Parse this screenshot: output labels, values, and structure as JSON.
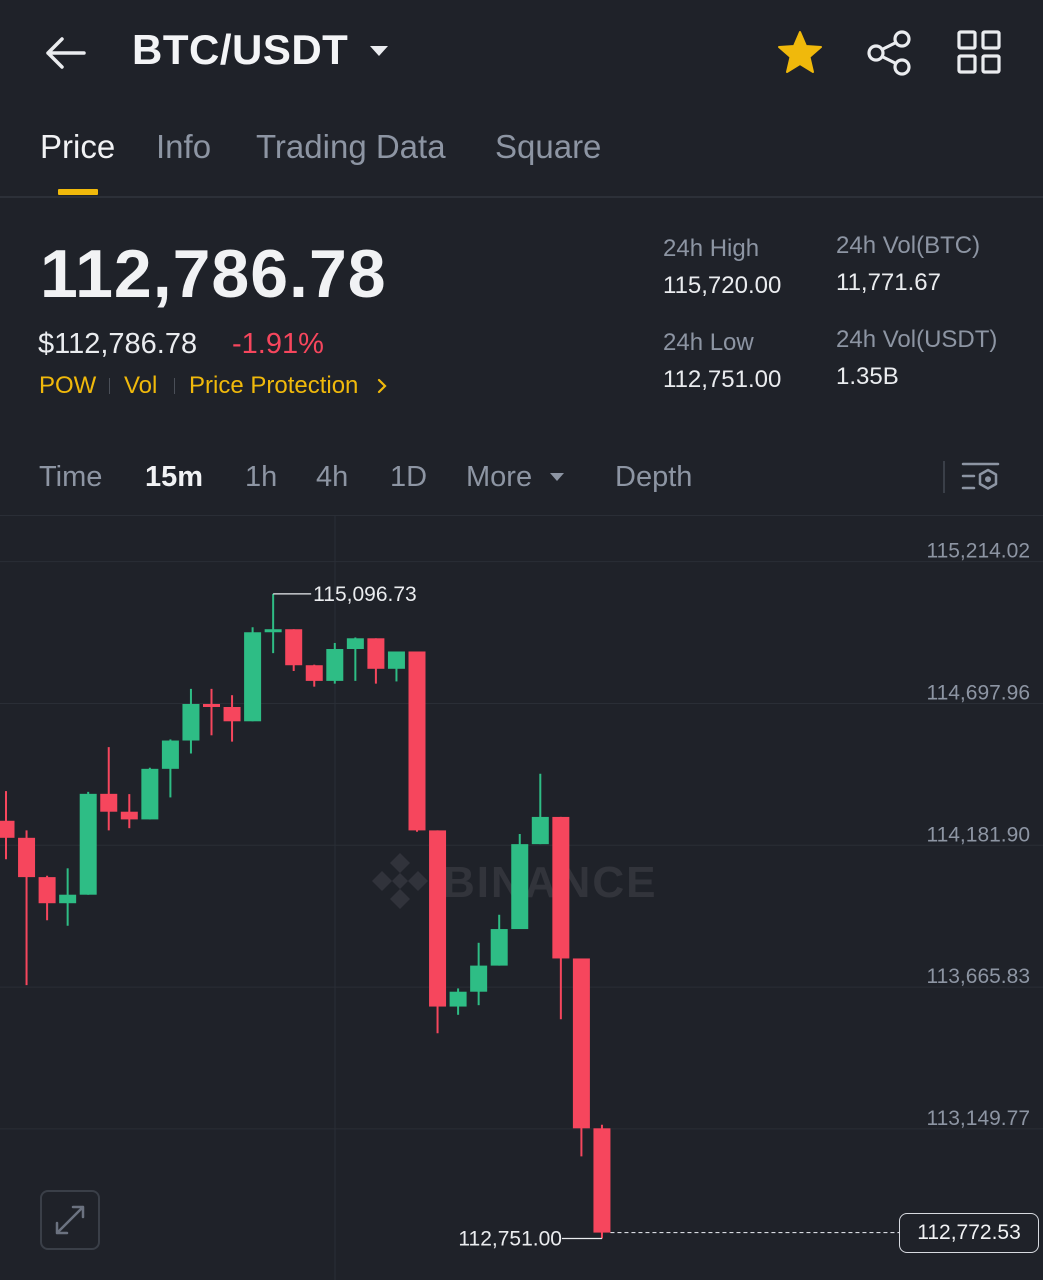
{
  "header": {
    "pair": "BTC/USDT",
    "icons": [
      "back-arrow-icon",
      "caret-down-icon",
      "star-icon",
      "share-icon",
      "grid-icon"
    ],
    "star_color": "#f0b90b"
  },
  "tabs": [
    {
      "label": "Price",
      "active": true
    },
    {
      "label": "Info"
    },
    {
      "label": "Trading Data"
    },
    {
      "label": "Square"
    }
  ],
  "price": {
    "last": "112,786.78",
    "usd": "$112,786.78",
    "change": "-1.91%",
    "tags": [
      "POW",
      "Vol",
      "Price Protection"
    ]
  },
  "stats": {
    "high_label": "24h High",
    "high": "115,720.00",
    "low_label": "24h Low",
    "low": "112,751.00",
    "vol_btc_label": "24h Vol(BTC)",
    "vol_btc": "11,771.67",
    "vol_usdt_label": "24h Vol(USDT)",
    "vol_usdt": "1.35B"
  },
  "timeframes": {
    "items": [
      "Time",
      "15m",
      "1h",
      "4h",
      "1D",
      "More",
      "Depth"
    ],
    "active": "15m"
  },
  "colors": {
    "background": "#1f2229",
    "up": "#2ebd85",
    "down": "#f6465d",
    "accent": "#f0b90b"
  },
  "chart_data": {
    "type": "candlestick",
    "watermark": "BINANCE",
    "y_ticks": [
      115214.02,
      114697.96,
      114181.9,
      113665.83,
      113149.77
    ],
    "y_tick_labels": [
      "115,214.02",
      "114,697.96",
      "114,181.90",
      "113,665.83",
      "113,149.77"
    ],
    "ylim": [
      112600,
      115380
    ],
    "annotations": {
      "high": {
        "value": 115096.73,
        "label": "115,096.73"
      },
      "low": {
        "value": 112751.0,
        "label": "112,751.00"
      },
      "last": {
        "value": 112772.53,
        "label": "112,772.53"
      }
    },
    "candles": [
      {
        "o": 114271,
        "h": 114379,
        "l": 114131,
        "c": 114209
      },
      {
        "o": 114209,
        "h": 114236,
        "l": 113673,
        "c": 114066
      },
      {
        "o": 114066,
        "h": 114071,
        "l": 113909,
        "c": 113971
      },
      {
        "o": 113971,
        "h": 114098,
        "l": 113889,
        "c": 114002
      },
      {
        "o": 114002,
        "h": 114376,
        "l": 114002,
        "c": 114369
      },
      {
        "o": 114369,
        "h": 114539,
        "l": 114236,
        "c": 114304
      },
      {
        "o": 114304,
        "h": 114368,
        "l": 114244,
        "c": 114276
      },
      {
        "o": 114276,
        "h": 114464,
        "l": 114276,
        "c": 114460
      },
      {
        "o": 114460,
        "h": 114567,
        "l": 114356,
        "c": 114563
      },
      {
        "o": 114563,
        "h": 114751,
        "l": 114516,
        "c": 114696
      },
      {
        "o": 114696,
        "h": 114751,
        "l": 114582,
        "c": 114685
      },
      {
        "o": 114685,
        "h": 114728,
        "l": 114559,
        "c": 114633
      },
      {
        "o": 114633,
        "h": 114975,
        "l": 114633,
        "c": 114957
      },
      {
        "o": 114957,
        "h": 115096.73,
        "l": 114881,
        "c": 114968
      },
      {
        "o": 114968,
        "h": 114968,
        "l": 114816,
        "c": 114837
      },
      {
        "o": 114837,
        "h": 114839,
        "l": 114759,
        "c": 114780
      },
      {
        "o": 114780,
        "h": 114918,
        "l": 114770,
        "c": 114896
      },
      {
        "o": 114896,
        "h": 114938,
        "l": 114780,
        "c": 114935
      },
      {
        "o": 114935,
        "h": 114935,
        "l": 114770,
        "c": 114824
      },
      {
        "o": 114824,
        "h": 114887,
        "l": 114778,
        "c": 114887
      },
      {
        "o": 114887,
        "h": 114887,
        "l": 114231,
        "c": 114236
      },
      {
        "o": 114236,
        "h": 114236,
        "l": 113498,
        "c": 113595
      },
      {
        "o": 113595,
        "h": 113661,
        "l": 113565,
        "c": 113649
      },
      {
        "o": 113649,
        "h": 113827,
        "l": 113600,
        "c": 113744
      },
      {
        "o": 113744,
        "h": 113929,
        "l": 113744,
        "c": 113877
      },
      {
        "o": 113877,
        "h": 114223,
        "l": 113877,
        "c": 114186
      },
      {
        "o": 114186,
        "h": 114442,
        "l": 114186,
        "c": 114285
      },
      {
        "o": 114285,
        "h": 114285,
        "l": 113549,
        "c": 113770
      },
      {
        "o": 113770,
        "h": 113770,
        "l": 113050,
        "c": 113152
      },
      {
        "o": 113152,
        "h": 113165,
        "l": 112751.0,
        "c": 112772.53
      }
    ]
  },
  "last_price_box": "112,772.53"
}
